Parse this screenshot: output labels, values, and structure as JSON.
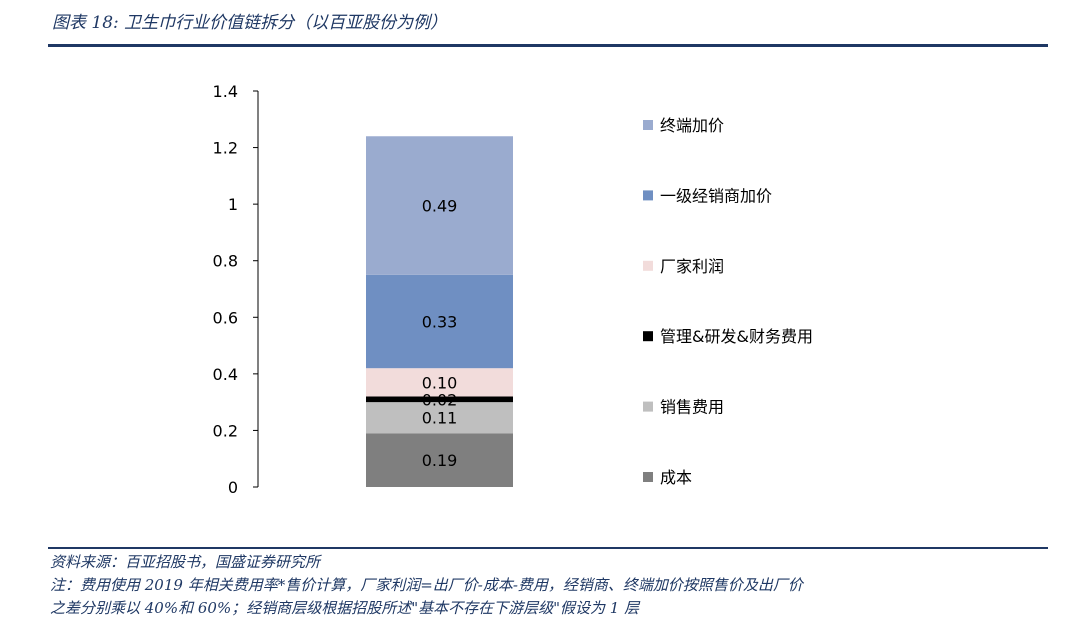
{
  "header": {
    "title": "图表 18:  卫生巾行业价值链拆分（以百亚股份为例）"
  },
  "footer": {
    "source": "资料来源：百亚招股书，国盛证券研究所",
    "note_line1": "注：费用使用 2019 年相关费用率*售价计算，厂家利润=出厂价-成本-费用，经销商、终端加价按照售价及出厂价",
    "note_line2": "之差分别乘以 40%和 60%；经销商层级根据招股所述\"基本不存在下游层级\"假设为 1 层"
  },
  "chart_data": {
    "type": "bar",
    "stacked": true,
    "categories": [
      ""
    ],
    "ylim": [
      0,
      1.4
    ],
    "yticks": [
      "0",
      "0.2",
      "0.4",
      "0.6",
      "0.8",
      "1",
      "1.2",
      "1.4"
    ],
    "series": [
      {
        "name": "成本",
        "values": [
          0.19
        ],
        "label": "0.19",
        "color": "#7f7f7f"
      },
      {
        "name": "销售费用",
        "values": [
          0.11
        ],
        "label": "0.11",
        "color": "#bfbfbf"
      },
      {
        "name": "管理&研发&财务费用",
        "values": [
          0.02
        ],
        "label": "0.02",
        "color": "#000000"
      },
      {
        "name": "厂家利润",
        "values": [
          0.1
        ],
        "label": "0.10",
        "color": "#f2dcdb"
      },
      {
        "name": "一级经销商加价",
        "values": [
          0.33
        ],
        "label": "0.33",
        "color": "#6f8fc2"
      },
      {
        "name": "终端加价",
        "values": [
          0.49
        ],
        "label": "0.49",
        "color": "#9aabcf"
      }
    ],
    "legend": {
      "position": "right",
      "order": [
        "终端加价",
        "一级经销商加价",
        "厂家利润",
        "管理&研发&财务费用",
        "销售费用",
        "成本"
      ]
    },
    "grid": false
  }
}
